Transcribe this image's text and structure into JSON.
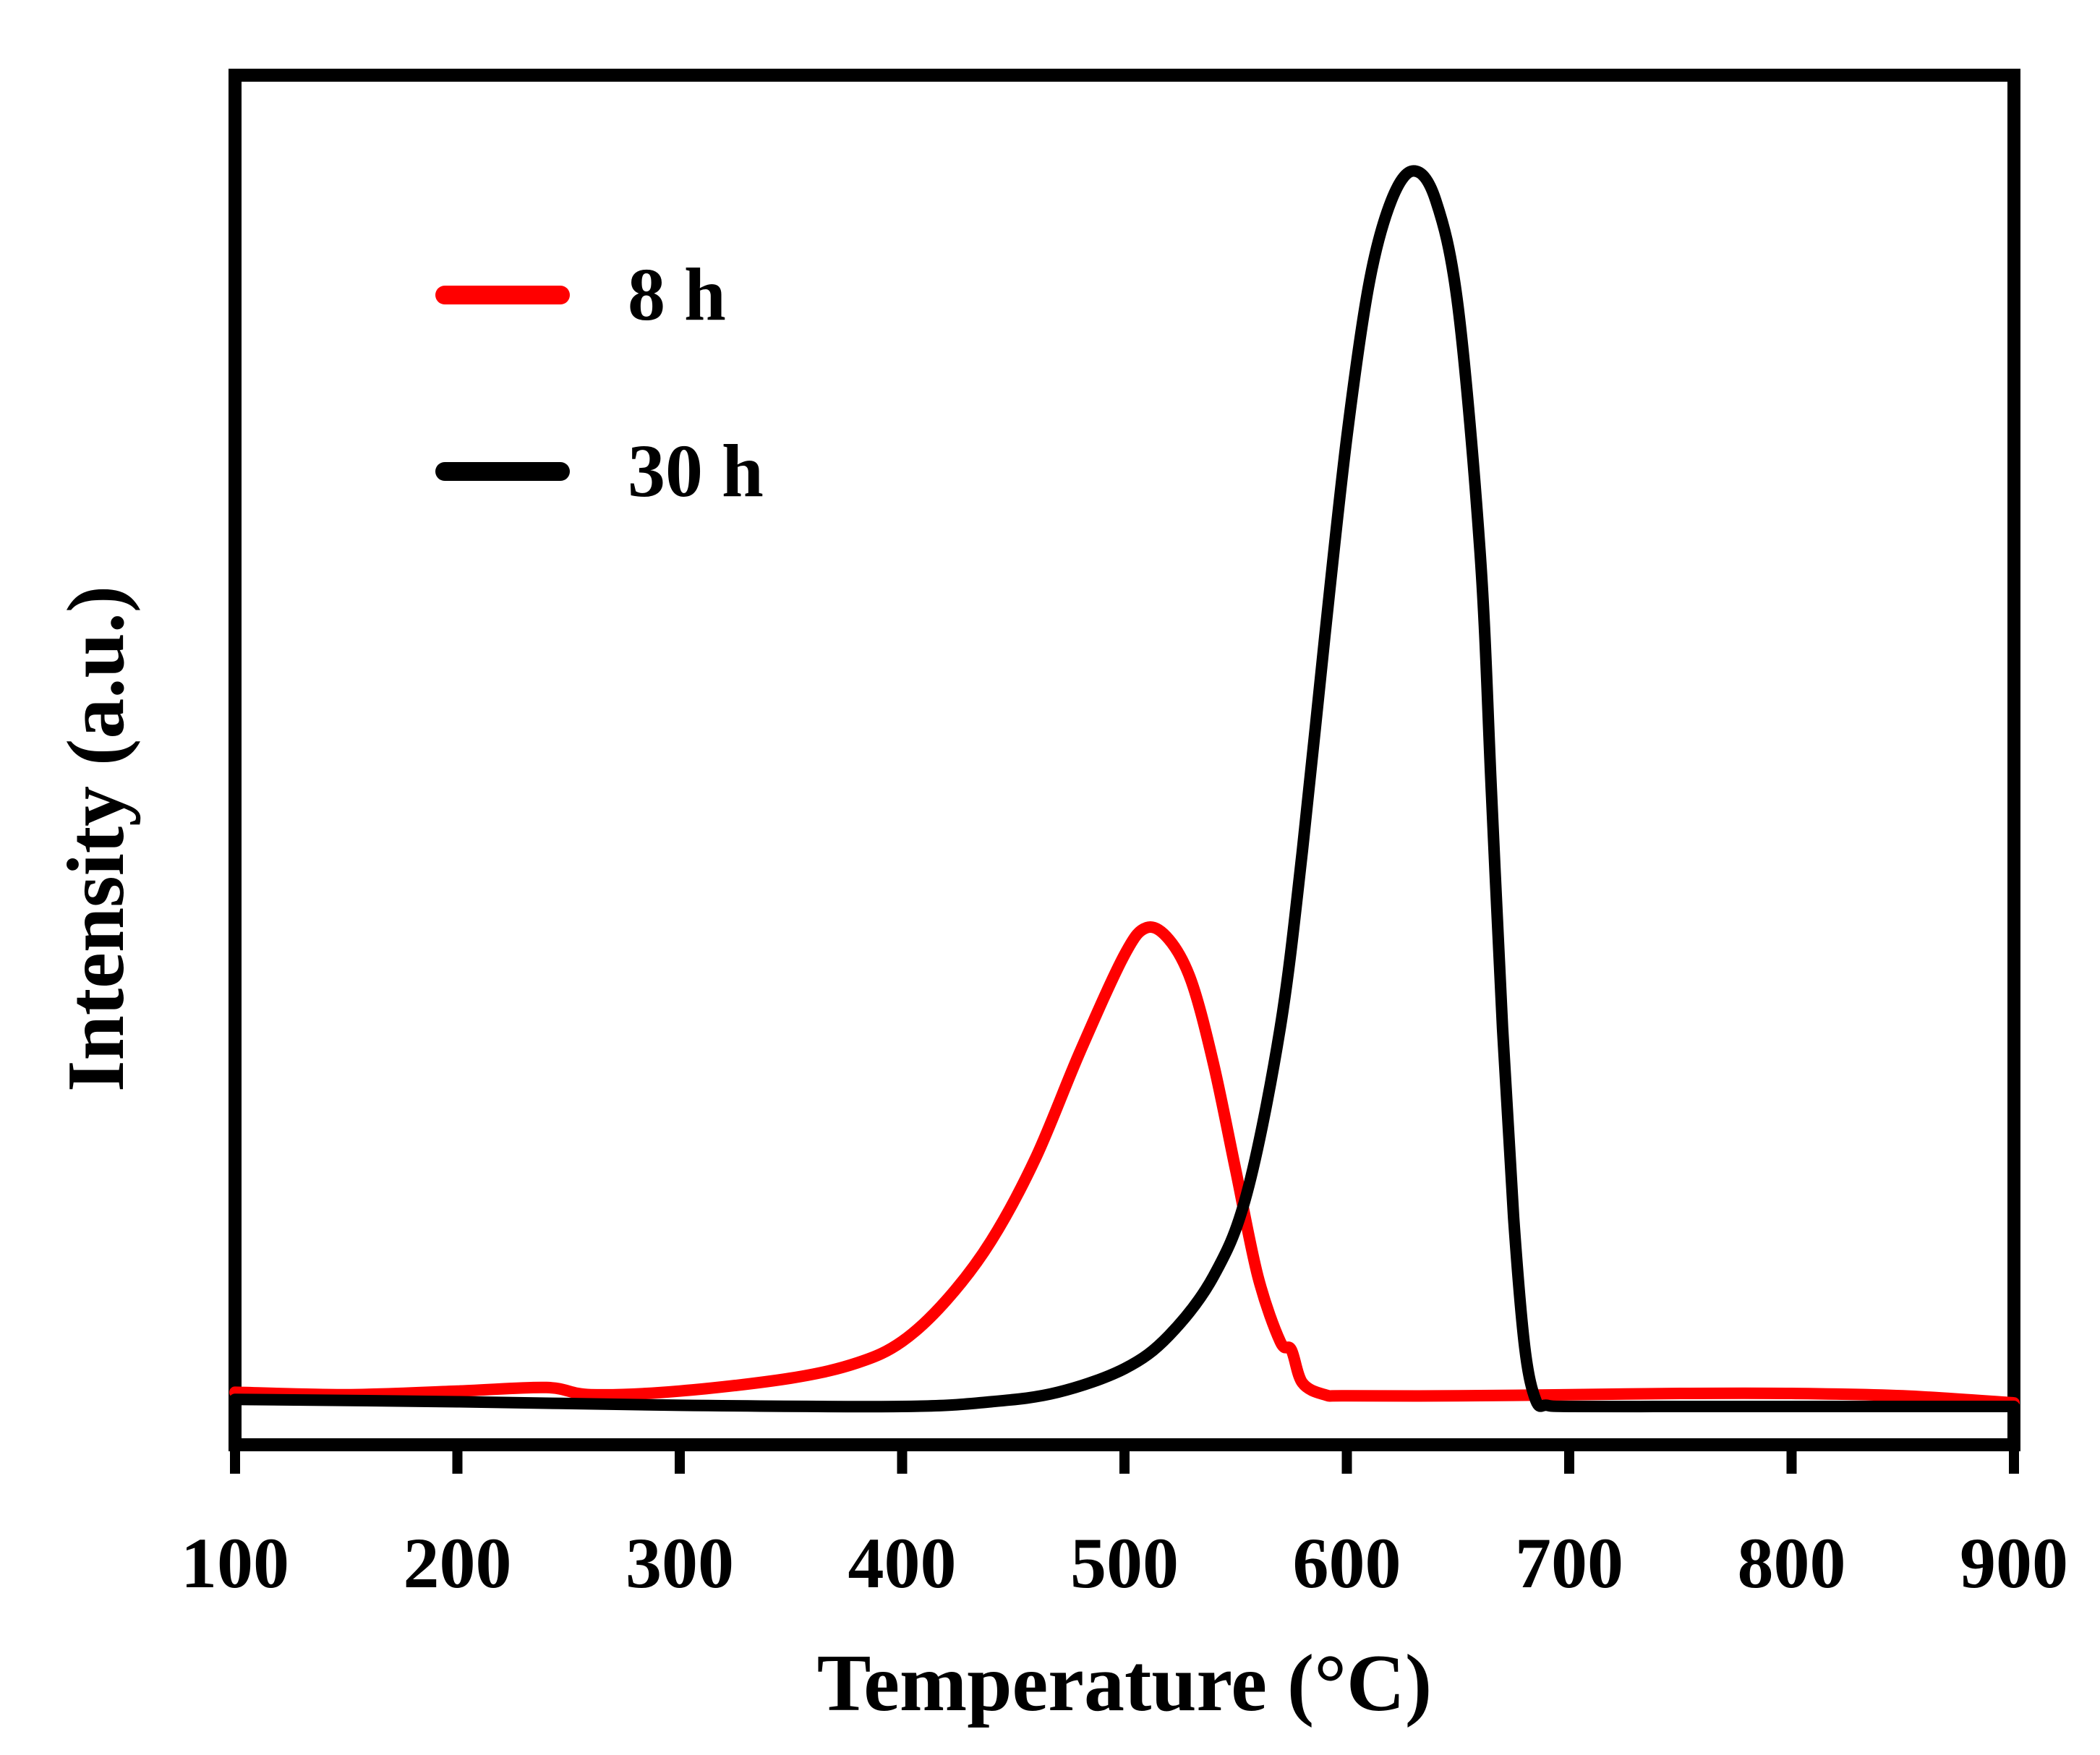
{
  "chart_data": {
    "type": "line",
    "title": "",
    "xlabel": "Temperature  (°C)",
    "ylabel": "Intensity (a.u.)",
    "xlim": [
      100,
      900
    ],
    "ylim": [
      0,
      1.2
    ],
    "xticks": [
      "100",
      "200",
      "300",
      "400",
      "500",
      "600",
      "700",
      "800",
      "900"
    ],
    "yticks": [],
    "grid": false,
    "legend_position": "top-left",
    "series": [
      {
        "name": "8 h",
        "color": "#ff0000",
        "x": [
          100,
          150,
          200,
          240,
          260,
          300,
          350,
          380,
          400,
          420,
          440,
          460,
          480,
          500,
          510,
          520,
          530,
          540,
          550,
          560,
          570,
          575,
          580,
          590,
          600,
          650,
          700,
          750,
          800,
          850,
          900
        ],
        "y": [
          0.012,
          0.01,
          0.013,
          0.016,
          0.01,
          0.013,
          0.024,
          0.037,
          0.055,
          0.09,
          0.14,
          0.21,
          0.3,
          0.382,
          0.405,
          0.395,
          0.36,
          0.29,
          0.2,
          0.11,
          0.055,
          0.048,
          0.02,
          0.01,
          0.009,
          0.009,
          0.01,
          0.011,
          0.011,
          0.009,
          0.003
        ]
      },
      {
        "name": "30 h",
        "color": "#000000",
        "x": [
          100,
          200,
          300,
          400,
          440,
          470,
          500,
          520,
          540,
          555,
          570,
          580,
          590,
          600,
          610,
          620,
          630,
          640,
          650,
          660,
          665,
          670,
          675,
          680,
          685,
          690,
          700,
          750,
          800,
          850,
          900
        ],
        "y": [
          0.006,
          0.004,
          0.001,
          0.0,
          0.004,
          0.012,
          0.032,
          0.06,
          0.11,
          0.18,
          0.32,
          0.47,
          0.65,
          0.82,
          0.95,
          1.02,
          1.045,
          1.02,
          0.93,
          0.72,
          0.52,
          0.32,
          0.16,
          0.05,
          0.005,
          0.001,
          0.0,
          0.0,
          0.0,
          0.0,
          0.0
        ]
      }
    ]
  }
}
